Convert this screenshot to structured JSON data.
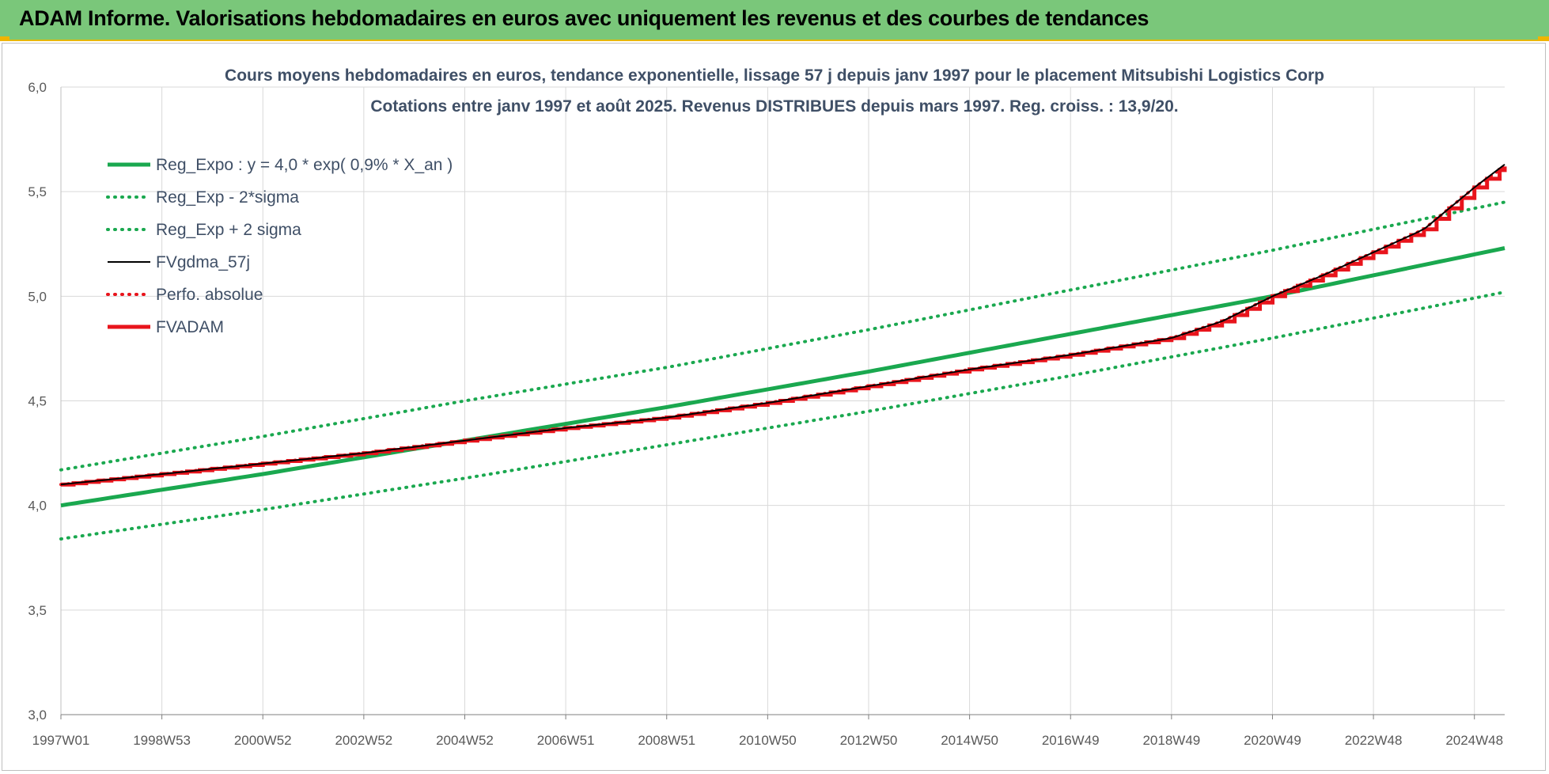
{
  "banner": {
    "title": "ADAM Informe. Valorisations hebdomadaires en euros avec uniquement les revenus et des courbes de tendances"
  },
  "colors": {
    "banner_bg": "#7ac77a",
    "trend_green": "#1aa84f",
    "band_green": "#1aa84f",
    "fv_black": "#000000",
    "adam_red": "#e8141c",
    "grid": "#d9d9d9"
  },
  "chart_data": {
    "type": "line",
    "title": "Cours moyens hebdomadaires en euros, tendance exponentielle, lissage 57 j depuis janv 1997 pour le placement Mitsubishi Logistics Corp",
    "subtitle": "Cotations entre janv 1997 et août 2025. Revenus DISTRIBUES depuis mars 1997. Reg. croiss. : 13,9/20.",
    "xlabel": "",
    "ylabel": "",
    "x_range": [
      1997.0,
      2025.6
    ],
    "x_ticks": [
      {
        "label": "1997W01",
        "x": 1997.0
      },
      {
        "label": "1998W53",
        "x": 1999.0
      },
      {
        "label": "2000W52",
        "x": 2001.0
      },
      {
        "label": "2002W52",
        "x": 2003.0
      },
      {
        "label": "2004W52",
        "x": 2005.0
      },
      {
        "label": "2006W51",
        "x": 2007.0
      },
      {
        "label": "2008W51",
        "x": 2009.0
      },
      {
        "label": "2010W50",
        "x": 2011.0
      },
      {
        "label": "2012W50",
        "x": 2013.0
      },
      {
        "label": "2014W50",
        "x": 2015.0
      },
      {
        "label": "2016W49",
        "x": 2017.0
      },
      {
        "label": "2018W49",
        "x": 2019.0
      },
      {
        "label": "2020W49",
        "x": 2021.0
      },
      {
        "label": "2022W48",
        "x": 2023.0
      },
      {
        "label": "2024W48",
        "x": 2025.0
      }
    ],
    "ylim": [
      3.0,
      6.0
    ],
    "y_ticks": [
      "3,0",
      "3,5",
      "4,0",
      "4,5",
      "5,0",
      "5,5",
      "6,0"
    ],
    "y_tick_values": [
      3.0,
      3.5,
      4.0,
      4.5,
      5.0,
      5.5,
      6.0
    ],
    "grid": true,
    "legend_position": "top-left",
    "series": [
      {
        "name": "Reg_Expo : y = 4,0 * exp( 0,9% *  X_an )",
        "style": "solid-thick",
        "color": "#1aa84f",
        "x": [
          1997.0,
          2001.0,
          2005.0,
          2009.0,
          2013.0,
          2017.0,
          2021.0,
          2025.6
        ],
        "y": [
          4.0,
          4.15,
          4.31,
          4.47,
          4.64,
          4.82,
          5.0,
          5.23
        ]
      },
      {
        "name": "Reg_Exp - 2*sigma",
        "style": "dotted",
        "color": "#1aa84f",
        "x": [
          1997.0,
          2001.0,
          2005.0,
          2009.0,
          2013.0,
          2017.0,
          2021.0,
          2025.6
        ],
        "y": [
          3.84,
          3.98,
          4.13,
          4.29,
          4.45,
          4.62,
          4.8,
          5.02
        ]
      },
      {
        "name": "Reg_Exp + 2 sigma",
        "style": "dotted",
        "color": "#1aa84f",
        "x": [
          1997.0,
          2001.0,
          2005.0,
          2009.0,
          2013.0,
          2017.0,
          2021.0,
          2025.6
        ],
        "y": [
          4.17,
          4.33,
          4.5,
          4.66,
          4.84,
          5.03,
          5.22,
          5.45
        ]
      },
      {
        "name": "FVgdma_57j",
        "style": "solid-thin",
        "color": "#000000",
        "x": [
          1997.0,
          1999.0,
          2001.0,
          2003.0,
          2005.0,
          2007.0,
          2009.0,
          2011.0,
          2013.0,
          2015.0,
          2017.0,
          2019.0,
          2020.0,
          2021.0,
          2022.0,
          2023.0,
          2024.0,
          2024.5,
          2025.0,
          2025.6
        ],
        "y": [
          4.1,
          4.15,
          4.2,
          4.25,
          4.31,
          4.37,
          4.42,
          4.49,
          4.57,
          4.65,
          4.72,
          4.8,
          4.88,
          5.0,
          5.1,
          5.21,
          5.32,
          5.42,
          5.52,
          5.63
        ]
      },
      {
        "name": "Perfo. absolue",
        "style": "dotted",
        "color": "#e8141c",
        "x": [
          1997.0,
          1999.0,
          2001.0,
          2003.0,
          2005.0,
          2007.0,
          2009.0,
          2011.0,
          2013.0,
          2015.0,
          2017.0,
          2019.0,
          2020.0,
          2021.0,
          2022.0,
          2023.0,
          2024.0,
          2024.5,
          2025.0,
          2025.6
        ],
        "y": [
          4.1,
          4.15,
          4.2,
          4.25,
          4.31,
          4.37,
          4.42,
          4.49,
          4.57,
          4.65,
          4.72,
          4.8,
          4.88,
          5.0,
          5.1,
          5.21,
          5.32,
          5.42,
          5.52,
          5.62
        ]
      },
      {
        "name": "FVADAM",
        "style": "step-thick",
        "color": "#e8141c",
        "x": [
          1997.0,
          1999.0,
          2001.0,
          2003.0,
          2005.0,
          2007.0,
          2009.0,
          2011.0,
          2013.0,
          2015.0,
          2017.0,
          2019.0,
          2020.0,
          2021.0,
          2022.0,
          2023.0,
          2024.0,
          2024.5,
          2025.0,
          2025.6
        ],
        "y": [
          4.1,
          4.15,
          4.2,
          4.25,
          4.31,
          4.37,
          4.42,
          4.49,
          4.57,
          4.65,
          4.72,
          4.8,
          4.88,
          5.0,
          5.1,
          5.21,
          5.32,
          5.42,
          5.52,
          5.62
        ]
      }
    ]
  }
}
